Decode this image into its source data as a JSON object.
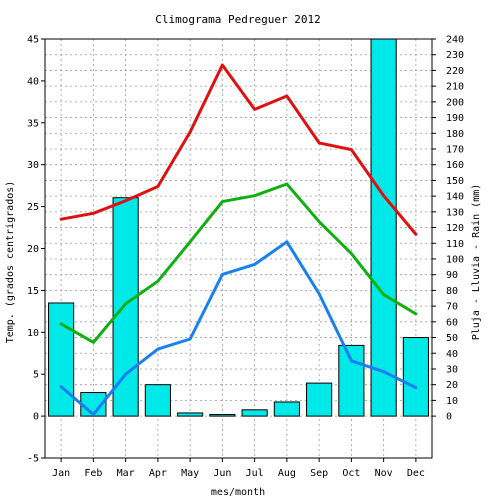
{
  "chart_data": {
    "type": "bar",
    "title": "Climograma Pedreguer 2012",
    "xlabel": "mes/month",
    "ylabel_left": "Temp. (grados centrigrados)",
    "ylabel_right": "Pluja - Lluvia - Rain (mm)",
    "categories": [
      "Jan",
      "Feb",
      "Mar",
      "Apr",
      "May",
      "Jun",
      "Jul",
      "Aug",
      "Sep",
      "Oct",
      "Nov",
      "Dec"
    ],
    "left_axis": {
      "min": -5,
      "max": 45,
      "ticks": [
        -5,
        0,
        5,
        10,
        15,
        20,
        25,
        30,
        35,
        40,
        45
      ]
    },
    "right_axis": {
      "min": 0,
      "max": 240,
      "step": 10
    },
    "grid": true,
    "colors": {
      "rain_bar": "#00e8e8",
      "temp_max": "#e01010",
      "temp_mean": "#10b010",
      "temp_min": "#1880f0"
    },
    "rain": [
      72,
      15,
      139,
      20,
      2,
      1,
      4,
      9,
      21,
      45,
      240,
      50
    ],
    "series": [
      {
        "key": "temp_max",
        "values": [
          23.5,
          24.2,
          25.7,
          27.4,
          33.9,
          41.9,
          36.6,
          38.2,
          32.6,
          31.8,
          26.3,
          21.7
        ]
      },
      {
        "key": "temp_mean",
        "values": [
          11,
          8.8,
          13.4,
          16.1,
          20.8,
          25.6,
          26.3,
          27.7,
          23.2,
          19.4,
          14.5,
          12.2
        ]
      },
      {
        "key": "temp_min",
        "values": [
          3.5,
          0.2,
          5,
          8,
          9.2,
          16.9,
          18.1,
          20.8,
          14.6,
          6.6,
          5.3,
          3.4
        ]
      }
    ]
  }
}
